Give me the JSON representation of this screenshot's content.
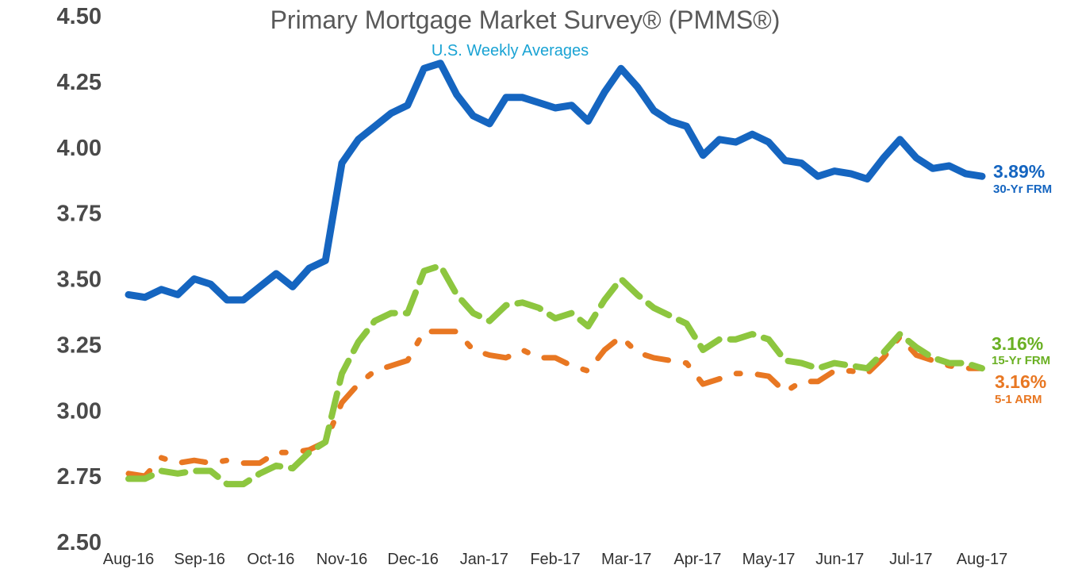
{
  "chart_data": {
    "type": "line",
    "title": "Primary Mortgage Market Survey® (PMMS®)",
    "subtitle": "U.S. Weekly Averages",
    "ylim": [
      2.5,
      4.5
    ],
    "yticks": [
      "4.50",
      "4.25",
      "4.00",
      "3.75",
      "3.50",
      "3.25",
      "3.00",
      "2.75",
      "2.50"
    ],
    "xticks": [
      "Aug-16",
      "Sep-16",
      "Oct-16",
      "Nov-16",
      "Dec-16",
      "Jan-17",
      "Feb-17",
      "Mar-17",
      "Apr-17",
      "May-17",
      "Jun-17",
      "Jul-17",
      "Aug-17"
    ],
    "grid": false,
    "series": [
      {
        "name": "30-Yr FRM",
        "end_label": "3.89%",
        "color": "#1565c0",
        "style": "solid",
        "values": [
          3.44,
          3.43,
          3.46,
          3.44,
          3.5,
          3.48,
          3.42,
          3.42,
          3.47,
          3.52,
          3.47,
          3.54,
          3.57,
          3.94,
          4.03,
          4.08,
          4.13,
          4.16,
          4.3,
          4.32,
          4.2,
          4.12,
          4.09,
          4.19,
          4.19,
          4.17,
          4.15,
          4.16,
          4.1,
          4.21,
          4.3,
          4.23,
          4.14,
          4.1,
          4.08,
          3.97,
          4.03,
          4.02,
          4.05,
          4.02,
          3.95,
          3.94,
          3.89,
          3.91,
          3.9,
          3.88,
          3.96,
          4.03,
          3.96,
          3.92,
          3.93,
          3.9,
          3.89
        ]
      },
      {
        "name": "15-Yr FRM",
        "end_label": "3.16%",
        "color": "#8dc63f",
        "style": "dashed",
        "values": [
          2.74,
          2.74,
          2.77,
          2.76,
          2.77,
          2.77,
          2.72,
          2.72,
          2.76,
          2.79,
          2.78,
          2.84,
          2.88,
          3.14,
          3.26,
          3.34,
          3.37,
          3.37,
          3.53,
          3.55,
          3.44,
          3.37,
          3.34,
          3.4,
          3.41,
          3.39,
          3.35,
          3.37,
          3.32,
          3.42,
          3.5,
          3.44,
          3.39,
          3.36,
          3.33,
          3.23,
          3.27,
          3.27,
          3.29,
          3.27,
          3.19,
          3.18,
          3.16,
          3.18,
          3.17,
          3.16,
          3.22,
          3.29,
          3.24,
          3.2,
          3.18,
          3.18,
          3.16
        ]
      },
      {
        "name": "5-1 ARM",
        "end_label": "3.16%",
        "color": "#e87722",
        "style": "dash-dot",
        "values": [
          2.76,
          2.75,
          2.82,
          2.8,
          2.81,
          2.8,
          2.81,
          2.8,
          2.8,
          2.84,
          2.84,
          2.85,
          2.88,
          3.03,
          3.1,
          3.15,
          3.17,
          3.19,
          3.3,
          3.3,
          3.3,
          3.23,
          3.21,
          3.2,
          3.23,
          3.2,
          3.2,
          3.17,
          3.15,
          3.23,
          3.28,
          3.22,
          3.2,
          3.19,
          3.18,
          3.1,
          3.12,
          3.14,
          3.14,
          3.13,
          3.07,
          3.11,
          3.11,
          3.15,
          3.15,
          3.14,
          3.2,
          3.28,
          3.21,
          3.19,
          3.17,
          3.16,
          3.16
        ]
      }
    ]
  }
}
